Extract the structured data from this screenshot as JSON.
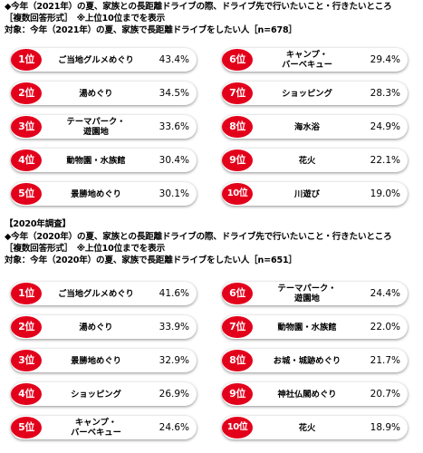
{
  "sections": [
    {
      "lines": [
        "◆今年（2021年）の夏、家族との長距離ドライブの際、ドライブ先で行いたいこと・行きたいところ",
        "［複数回答形式］　※上位10位までを表示",
        "対象：今年（2021年）の夏、家族で長距離ドライブをしたい人［n=678］"
      ],
      "chart_data": {
        "type": "table",
        "title": "◆今年（2021年）の夏、家族との長距離ドライブの際、ドライブ先で行いたいこと・行きたいところ",
        "columns": [
          "rank",
          "item",
          "percent"
        ],
        "rows": [
          {
            "rank": "1位",
            "item": "ご当地グルメめぐり",
            "value": "43.4%"
          },
          {
            "rank": "2位",
            "item": "湯めぐり",
            "value": "34.5%"
          },
          {
            "rank": "3位",
            "item": "テーマパーク・\n遊園地",
            "value": "33.6%"
          },
          {
            "rank": "4位",
            "item": "動物園・水族館",
            "value": "30.4%"
          },
          {
            "rank": "5位",
            "item": "景勝地めぐり",
            "value": "30.1%"
          },
          {
            "rank": "6位",
            "item": "キャンプ・\nバーベキュー",
            "value": "29.4%"
          },
          {
            "rank": "7位",
            "item": "ショッピング",
            "value": "28.3%"
          },
          {
            "rank": "8位",
            "item": "海水浴",
            "value": "24.9%"
          },
          {
            "rank": "9位",
            "item": "花火",
            "value": "22.1%"
          },
          {
            "rank": "10位",
            "item": "川遊び",
            "value": "19.0%"
          }
        ]
      }
    },
    {
      "lines": [
        "【2020年調査】",
        "◆今年（2020年）の夏、家族との長距離ドライブの際、ドライブ先で行いたいこと・行きたいところ",
        "［複数回答形式］　※上位10位までを表示",
        "対象：今年（2020年）の夏、家族で長距離ドライブをしたい人［n=651］"
      ],
      "chart_data": {
        "type": "table",
        "title": "◆今年（2020年）の夏、家族との長距離ドライブの際、ドライブ先で行いたいこと・行きたいところ",
        "columns": [
          "rank",
          "item",
          "percent"
        ],
        "rows": [
          {
            "rank": "1位",
            "item": "ご当地グルメめぐり",
            "value": "41.6%"
          },
          {
            "rank": "2位",
            "item": "湯めぐり",
            "value": "33.9%"
          },
          {
            "rank": "3位",
            "item": "景勝地めぐり",
            "value": "32.9%"
          },
          {
            "rank": "4位",
            "item": "ショッピング",
            "value": "26.9%"
          },
          {
            "rank": "5位",
            "item": "キャンプ・\nバーベキュー",
            "value": "24.6%"
          },
          {
            "rank": "6位",
            "item": "テーマパーク・\n遊園地",
            "value": "24.4%"
          },
          {
            "rank": "7位",
            "item": "動物園・水族館",
            "value": "22.0%"
          },
          {
            "rank": "8位",
            "item": "お城・城跡めぐり",
            "value": "21.7%"
          },
          {
            "rank": "9位",
            "item": "神社仏閣めぐり",
            "value": "20.7%"
          },
          {
            "rank": "10位",
            "item": "花火",
            "value": "18.9%"
          }
        ]
      }
    }
  ],
  "colors": {
    "badge": "#e3001b",
    "badge_text": "#ffffff",
    "row_background": "#ffffff"
  }
}
